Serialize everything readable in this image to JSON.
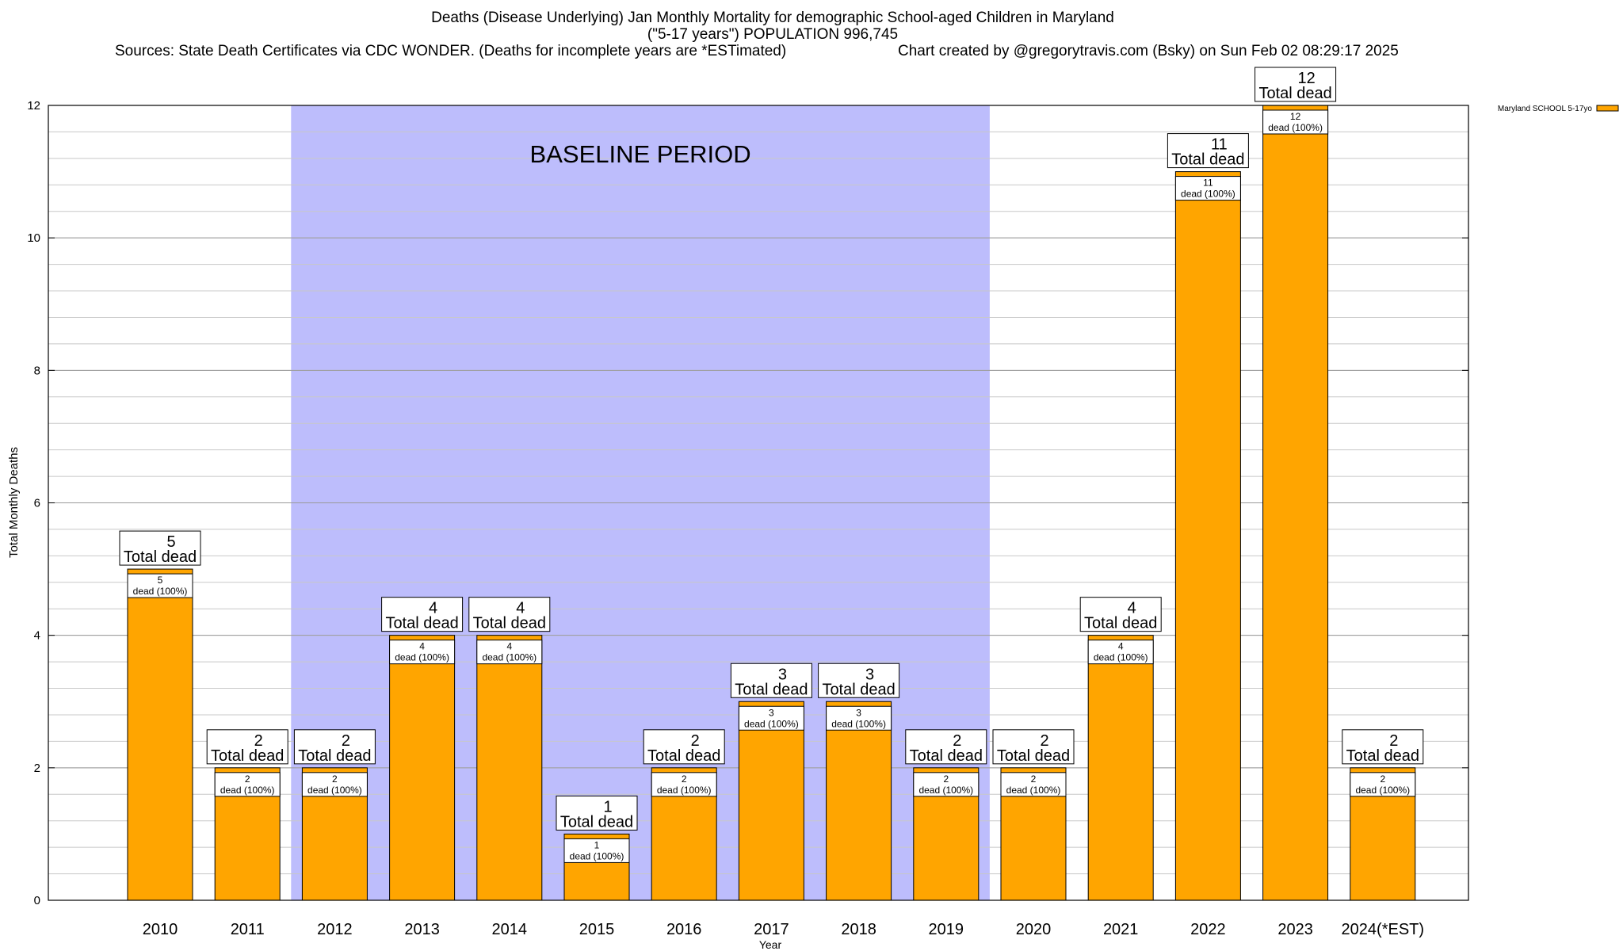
{
  "chart_data": {
    "type": "bar",
    "title_lines": [
      "Deaths (Disease Underlying) Jan Monthly Mortality for demographic School-aged Children in Maryland",
      "(\"5-17 years\") POPULATION 996,745"
    ],
    "sources": "Sources: State Death Certificates via CDC WONDER. (Deaths for incomplete years are *ESTimated)",
    "credit": "Chart created by @gregorytravis.com (Bsky) on Sun Feb 02 08:29:17 2025",
    "xlabel": "Year",
    "ylabel": "Total Monthly Deaths",
    "ylim": [
      0,
      12
    ],
    "y_ticks": [
      0,
      2,
      4,
      6,
      8,
      10,
      12
    ],
    "y_minor_step": 0.4,
    "grid": true,
    "legend_position": "top-right (outside plot)",
    "categories": [
      "2010",
      "2011",
      "2012",
      "2013",
      "2014",
      "2015",
      "2016",
      "2017",
      "2018",
      "2019",
      "2020",
      "2021",
      "2022",
      "2023",
      "2024(*EST)"
    ],
    "series": [
      {
        "name": "Maryland SCHOOL 5-17yo",
        "color": "#ffa500",
        "values": [
          5,
          2,
          2,
          4,
          4,
          1,
          2,
          3,
          3,
          2,
          2,
          4,
          11,
          12,
          2
        ]
      }
    ],
    "total_label": "Total dead",
    "inner_label": "dead (100%)",
    "baseline": {
      "label": "BASELINE PERIOD",
      "from": "2012",
      "to": "2019",
      "color": "#bdbdfc"
    }
  }
}
